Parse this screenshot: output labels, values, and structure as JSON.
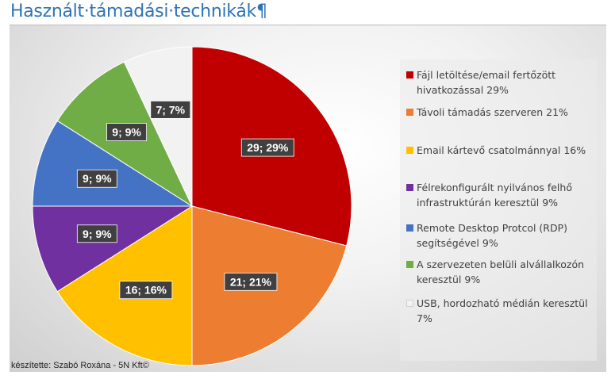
{
  "title": "Használt·támadási·technikák",
  "pilcrow": "¶",
  "credit": "készítette: Szabó Roxána - 5N Kft©",
  "chart_data": {
    "type": "pie",
    "title": "Használt támadási technikák",
    "start_angle_deg": 0,
    "direction": "clockwise",
    "slices": [
      {
        "label": "Fájl letöltése/email fertőzött hivatkozással 29%",
        "value": 29,
        "data_label": "29; 29%",
        "color": "#c00000"
      },
      {
        "label": "Távoli támadás szerveren 21%",
        "value": 21,
        "data_label": "21; 21%",
        "color": "#ed7d31"
      },
      {
        "label": "Email kártevő csatolmánnyal 16%",
        "value": 16,
        "data_label": "16; 16%",
        "color": "#ffc000"
      },
      {
        "label": "Félrekonfigurált nyilvános felhő infrastruktúrán keresztül 9%",
        "value": 9,
        "data_label": "9; 9%",
        "color": "#7030a0"
      },
      {
        "label": "Remote Desktop Protcol (RDP) segítségével 9%",
        "value": 9,
        "data_label": "9; 9%",
        "color": "#4472c4"
      },
      {
        "label": "A szervezeten belüli alvállalkozón keresztül 9%",
        "value": 9,
        "data_label": "9; 9%",
        "color": "#70ad47"
      },
      {
        "label": "USB, hordozható médián keresztül 7%",
        "value": 7,
        "data_label": "7; 7%",
        "color": "#f2f2f2"
      }
    ],
    "legend_position": "right"
  }
}
